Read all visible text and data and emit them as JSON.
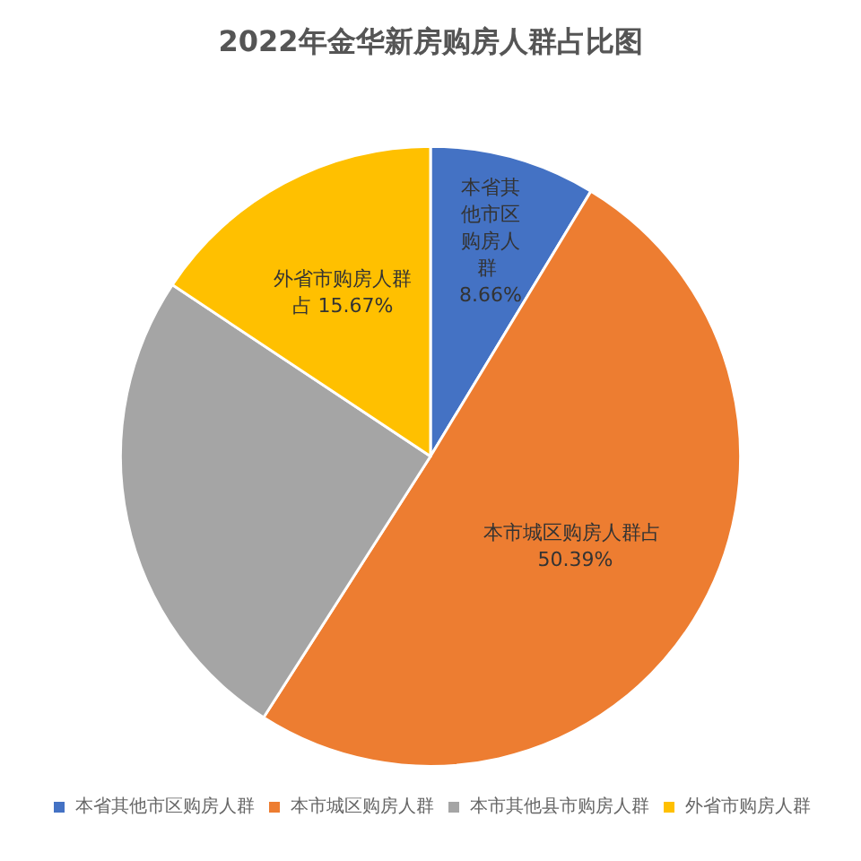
{
  "chart_data": {
    "type": "pie",
    "title": "2022年金华新房购房人群占比图",
    "categories": [
      "本省其他市区购房人群",
      "本市城区购房人群",
      "本市其他县市购房人群",
      "外省市购房人群"
    ],
    "values": [
      8.66,
      50.39,
      25.28,
      15.67
    ],
    "colors": [
      "#4472c4",
      "#ed7d31",
      "#a5a5a5",
      "#ffc000"
    ],
    "value_labels": [
      "本省其他市区购房人群 8.66%",
      "本市城区购房人群占 50.39%",
      null,
      "外省市购房人群占 15.67%"
    ],
    "legend": "bottom"
  }
}
